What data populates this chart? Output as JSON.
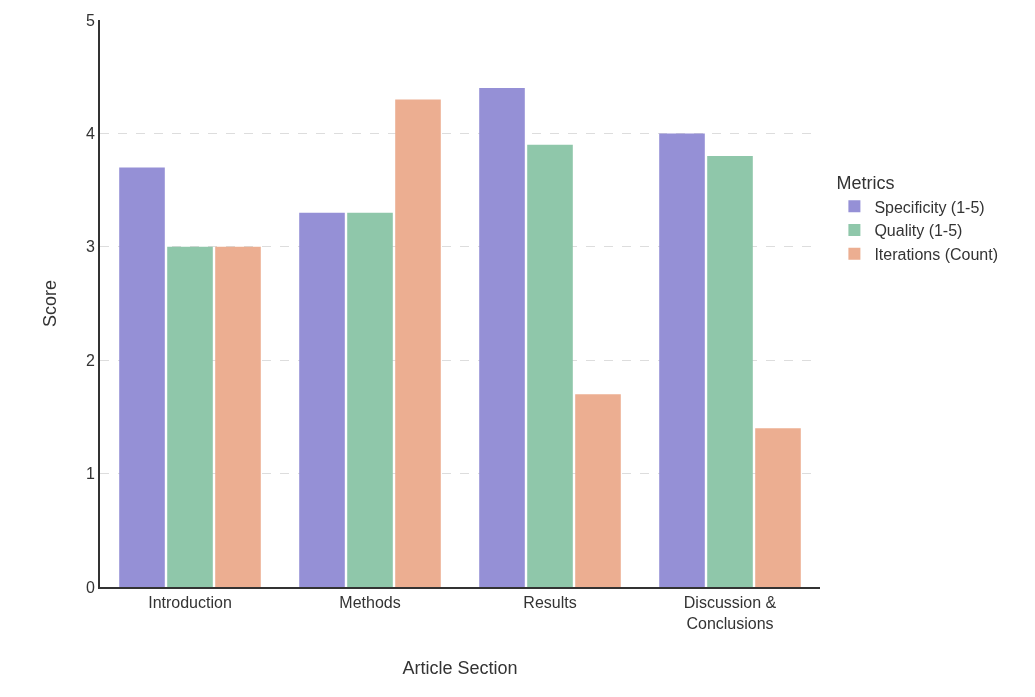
{
  "chart_data": {
    "type": "bar",
    "xlabel": "Article Section",
    "ylabel": "Score",
    "legend_title": "Metrics",
    "categories": [
      "Introduction",
      "Methods",
      "Results",
      "Discussion & Conclusions"
    ],
    "series": [
      {
        "name": "Specificity (1-5)",
        "color": "#9590d6",
        "values": [
          3.7,
          3.3,
          4.4,
          4.0
        ]
      },
      {
        "name": "Quality (1-5)",
        "color": "#8fc7aa",
        "values": [
          3.0,
          3.3,
          3.9,
          3.8
        ]
      },
      {
        "name": "Iterations (Count)",
        "color": "#ecae91",
        "values": [
          3.0,
          4.3,
          1.7,
          1.4
        ]
      }
    ],
    "ylim": [
      0,
      5
    ],
    "yticks": [
      0,
      1,
      2,
      3,
      4,
      5
    ],
    "grid": "y",
    "legend": "right"
  }
}
